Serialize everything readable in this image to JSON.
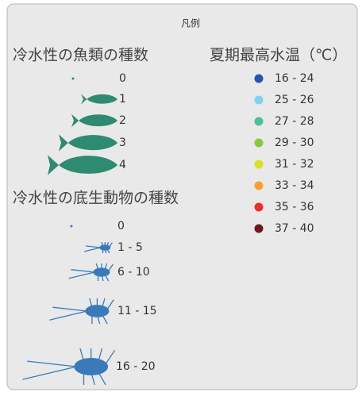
{
  "legend": {
    "title": "凡例",
    "fish": {
      "title": "冷水性の魚類の種数",
      "items": [
        "0",
        "1",
        "2",
        "3",
        "4"
      ]
    },
    "benthos": {
      "title": "冷水性の底生動物の種数",
      "items": [
        "0",
        "1 - 5",
        "6 - 10",
        "11 - 15",
        "16 - 20"
      ]
    },
    "temperature": {
      "title": "夏期最高水温（℃）",
      "items": [
        {
          "label": "16 - 24",
          "color": "#2753a8"
        },
        {
          "label": "25 - 26",
          "color": "#7fd3ef"
        },
        {
          "label": "27 - 28",
          "color": "#4fbf9a"
        },
        {
          "label": "29 - 30",
          "color": "#8cc63f"
        },
        {
          "label": "31 - 32",
          "color": "#d9df2b"
        },
        {
          "label": "33 - 34",
          "color": "#f7a030"
        },
        {
          "label": "35 - 36",
          "color": "#e8302a"
        },
        {
          "label": "37 - 40",
          "color": "#6b1a1a"
        }
      ]
    }
  }
}
